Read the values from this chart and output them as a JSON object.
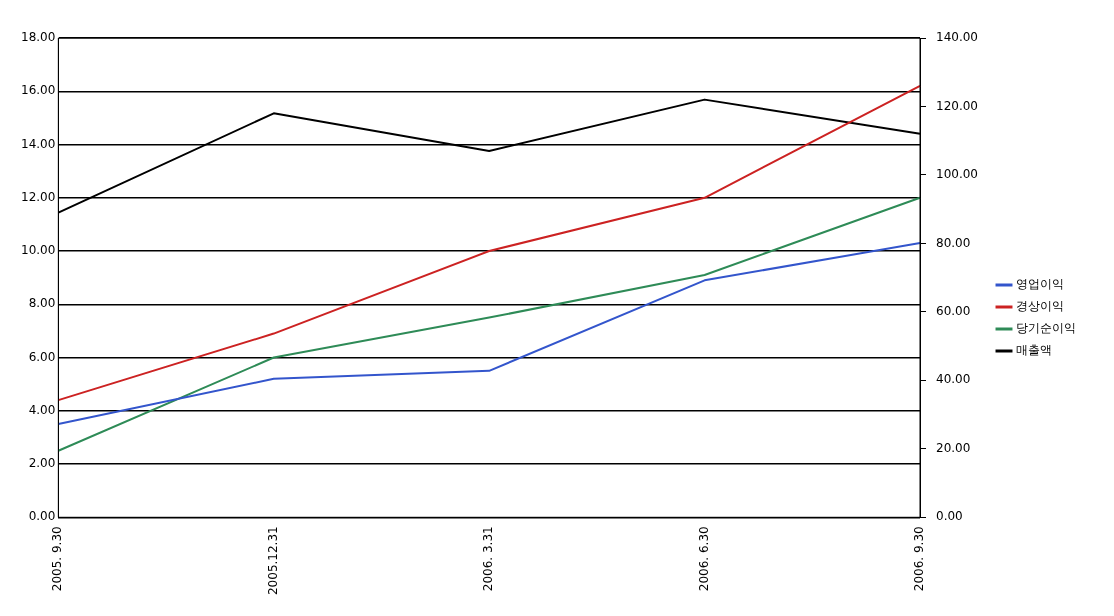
{
  "chart_data": {
    "type": "line",
    "categories": [
      "2005. 9.30",
      "2005.12.31",
      "2006. 3.31",
      "2006. 6.30",
      "2006. 9.30"
    ],
    "series": [
      {
        "name": "영업이익",
        "color": "#3355cc",
        "values": [
          3.5,
          5.2,
          5.5,
          8.9,
          10.3
        ]
      },
      {
        "name": "경상이익",
        "color": "#cc2222",
        "values": [
          4.4,
          6.9,
          10.0,
          12.0,
          16.2
        ]
      },
      {
        "name": "당기순이익",
        "color": "#2e8b57",
        "values": [
          2.5,
          6.0,
          7.5,
          9.1,
          12.0
        ]
      },
      {
        "name": "매출액",
        "color": "#000000",
        "axis": "y2",
        "values": [
          89,
          118,
          107,
          122,
          112
        ]
      }
    ],
    "ylim": [
      0,
      18
    ],
    "yticks": [
      {
        "value": 0,
        "label": "0.00"
      },
      {
        "value": 2,
        "label": "2.00"
      },
      {
        "value": 4,
        "label": "4.00"
      },
      {
        "value": 6,
        "label": "6.00"
      },
      {
        "value": 8,
        "label": "8.00"
      },
      {
        "value": 10,
        "label": "10.00"
      },
      {
        "value": 12,
        "label": "12.00"
      },
      {
        "value": 14,
        "label": "14.00"
      },
      {
        "value": 16,
        "label": "16.00"
      },
      {
        "value": 18,
        "label": "18.00"
      }
    ],
    "y2lim": [
      0,
      140
    ],
    "y2ticks": [
      {
        "value": 0,
        "label": "0.00"
      },
      {
        "value": 20,
        "label": "20.00"
      },
      {
        "value": 40,
        "label": "40.00"
      },
      {
        "value": 60,
        "label": "60.00"
      },
      {
        "value": 80,
        "label": "80.00"
      },
      {
        "value": 100,
        "label": "100.00"
      },
      {
        "value": 120,
        "label": "120.00"
      },
      {
        "value": 140,
        "label": "140.00"
      }
    ],
    "grid": "y",
    "legend": "right",
    "marker": "none",
    "line_style": "solid"
  }
}
